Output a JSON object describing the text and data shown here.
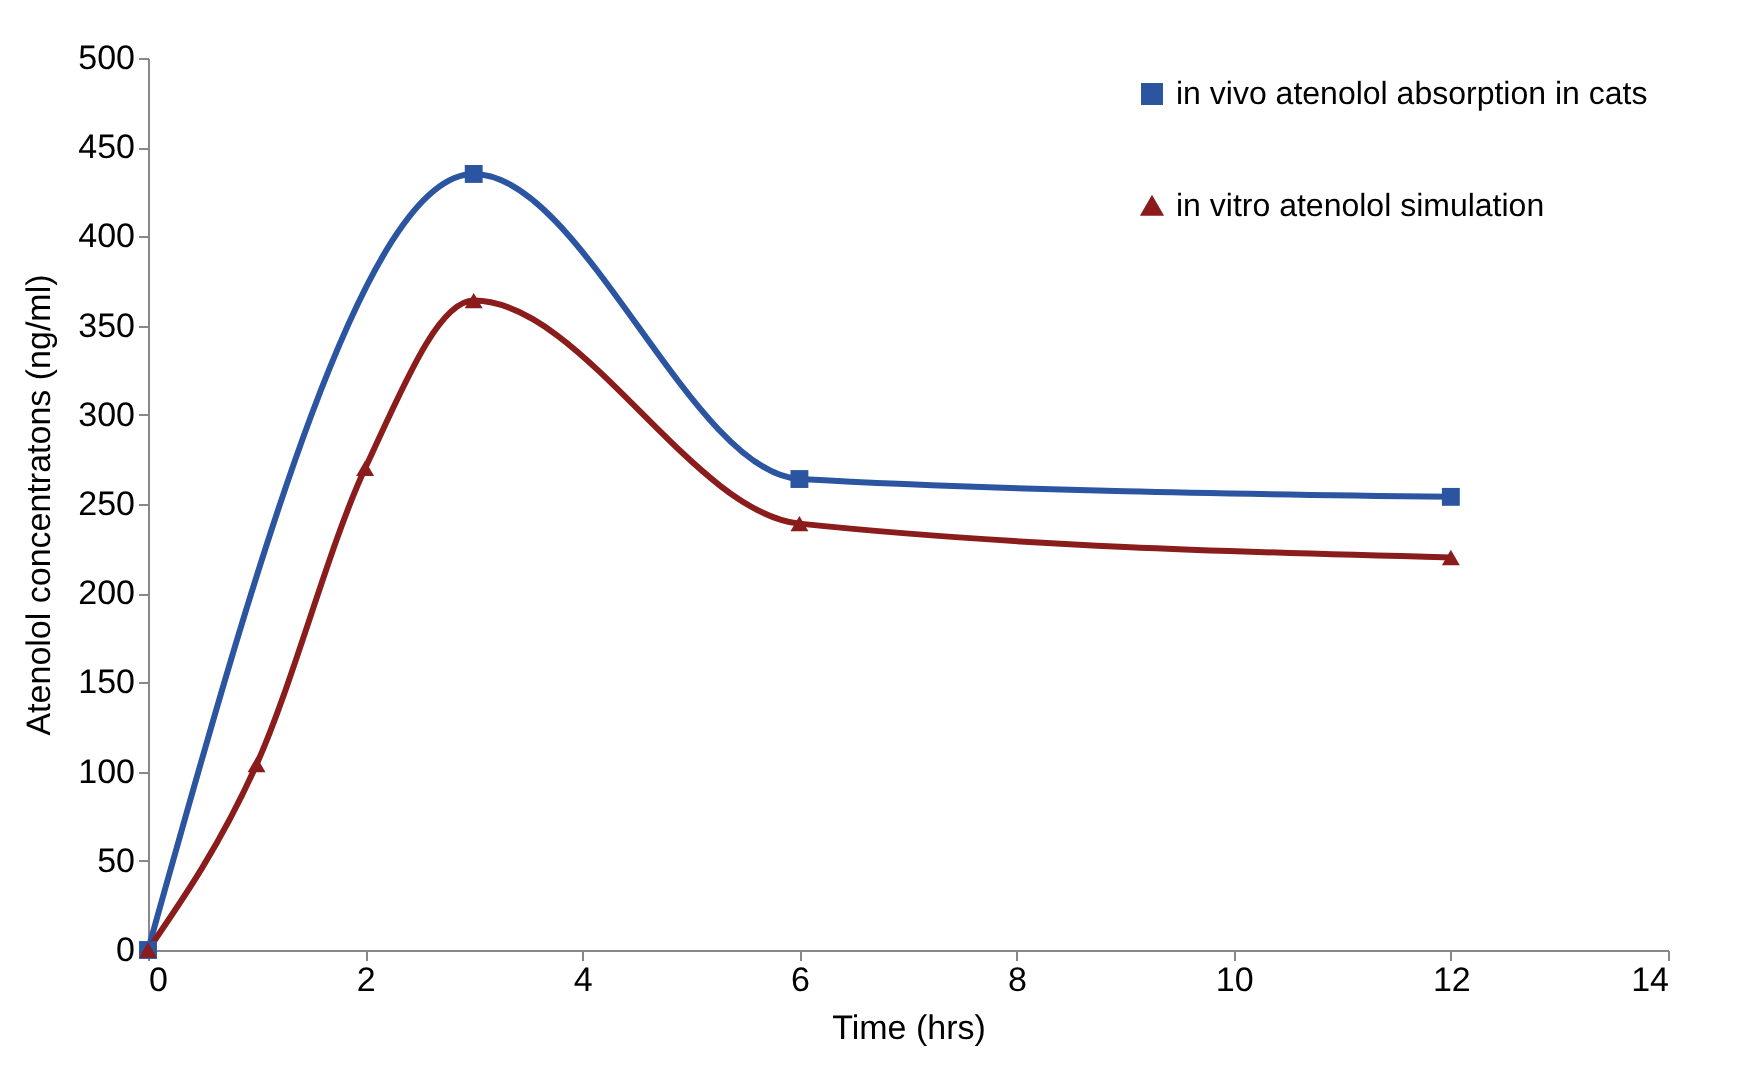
{
  "chart_data": {
    "type": "line",
    "xlabel": "Time (hrs)",
    "ylabel": "Atenolol concentratons (ng/ml)",
    "xlim": [
      0,
      14
    ],
    "xticks": [
      0,
      2,
      4,
      6,
      8,
      10,
      12,
      14
    ],
    "ylim": [
      0,
      500
    ],
    "yticks": [
      0,
      50,
      100,
      150,
      200,
      250,
      300,
      350,
      400,
      450,
      500
    ],
    "grid": false,
    "legend": "top right",
    "series": [
      {
        "name": "in vivo atenolol absorption in cats",
        "color": "#2b55a0",
        "marker": "square",
        "x": [
          0,
          3,
          6,
          12
        ],
        "values": [
          0,
          435,
          264,
          254
        ]
      },
      {
        "name": "in vitro atenolol simulation",
        "color": "#8b1c1c",
        "marker": "triangle",
        "x": [
          0,
          1,
          2,
          3,
          6,
          12
        ],
        "values": [
          0,
          104,
          270,
          364,
          239,
          220
        ]
      }
    ]
  }
}
